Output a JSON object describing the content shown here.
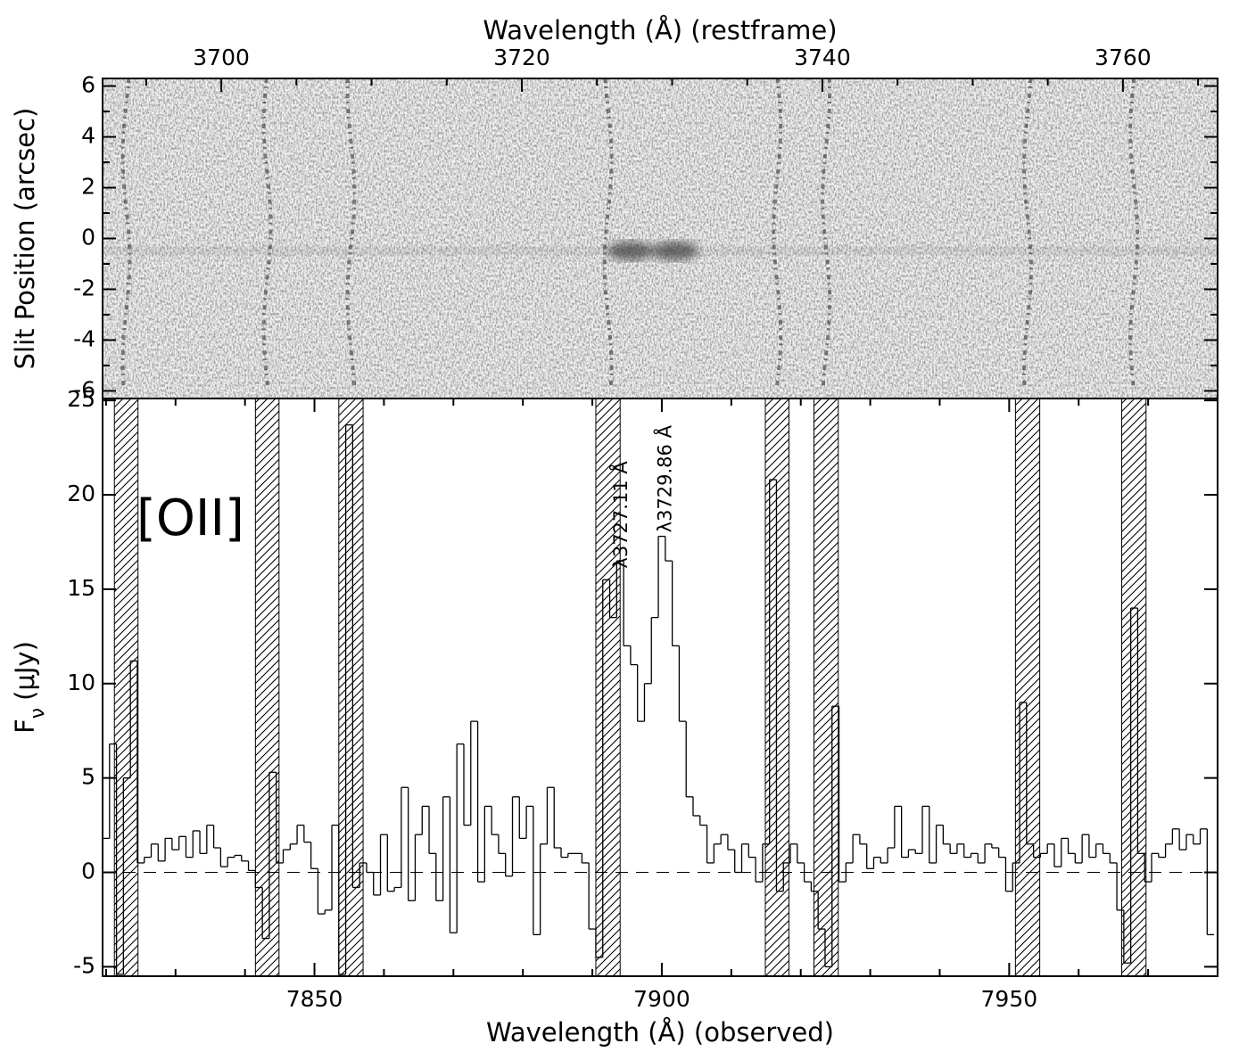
{
  "chart_data": [
    {
      "type": "image",
      "xlabel": "Wavelength (Å) (restframe)",
      "xlim": [
        3692.1,
        3766.3
      ],
      "xticks": [
        3700,
        3720,
        3740,
        3760
      ],
      "xminorticks": [
        3695,
        3705,
        3710,
        3715,
        3725,
        3730,
        3735,
        3745,
        3750,
        3755,
        3765
      ],
      "ylabel": "Slit Position (arcsec)",
      "ylim": [
        -6.3,
        6.3
      ],
      "yticks": [
        -6,
        -4,
        -2,
        0,
        2,
        4,
        6
      ],
      "yminorticks": [
        -5,
        -3,
        -1,
        1,
        3,
        5
      ]
    },
    {
      "type": "step",
      "xlabel": "Wavelength (Å) (observed)",
      "xlim": [
        7819.5,
        7980
      ],
      "xticks": [
        7850,
        7900,
        7950
      ],
      "xminorticks": [
        7820,
        7830,
        7840,
        7860,
        7870,
        7880,
        7890,
        7910,
        7920,
        7930,
        7940,
        7960,
        7970,
        7980
      ],
      "ylabel": [
        "F",
        "ν",
        "(μJy)"
      ],
      "ylim": [
        -5.5,
        25.1
      ],
      "yticks": [
        -5,
        0,
        5,
        10,
        15,
        20,
        25
      ],
      "color": "#000000",
      "x": [
        7820,
        7821,
        7822,
        7823,
        7824,
        7825,
        7826,
        7827,
        7828,
        7829,
        7830,
        7831,
        7832,
        7833,
        7834,
        7835,
        7836,
        7837,
        7838,
        7839,
        7840,
        7841,
        7842,
        7843,
        7844,
        7845,
        7846,
        7847,
        7848,
        7849,
        7850,
        7851,
        7852,
        7853,
        7854,
        7855,
        7856,
        7857,
        7858,
        7859,
        7860,
        7861,
        7862,
        7863,
        7864,
        7865,
        7866,
        7867,
        7868,
        7869,
        7870,
        7871,
        7872,
        7873,
        7874,
        7875,
        7876,
        7877,
        7878,
        7879,
        7880,
        7881,
        7882,
        7883,
        7884,
        7885,
        7886,
        7887,
        7888,
        7889,
        7890,
        7891,
        7892,
        7893,
        7894,
        7895,
        7896,
        7897,
        7898,
        7899,
        7900,
        7901,
        7902,
        7903,
        7904,
        7905,
        7906,
        7907,
        7908,
        7909,
        7910,
        7911,
        7912,
        7913,
        7914,
        7915,
        7916,
        7917,
        7918,
        7919,
        7920,
        7921,
        7922,
        7923,
        7924,
        7925,
        7926,
        7927,
        7928,
        7929,
        7930,
        7931,
        7932,
        7933,
        7934,
        7935,
        7936,
        7937,
        7938,
        7939,
        7940,
        7941,
        7942,
        7943,
        7944,
        7945,
        7946,
        7947,
        7948,
        7949,
        7950,
        7951,
        7952,
        7953,
        7954,
        7955,
        7956,
        7957,
        7958,
        7959,
        7960,
        7961,
        7962,
        7963,
        7964,
        7965,
        7966,
        7967,
        7968,
        7969,
        7970,
        7971,
        7972,
        7973,
        7974,
        7975,
        7976,
        7977,
        7978,
        7979
      ],
      "values": [
        1.8,
        6.8,
        -5.4,
        5,
        11.2,
        0.5,
        0.8,
        1.5,
        0.6,
        1.8,
        1.2,
        1.9,
        0.8,
        2.2,
        1.0,
        2.5,
        1.3,
        0.3,
        0.8,
        0.9,
        0.6,
        0.1,
        -0.8,
        -3.5,
        5.3,
        0.5,
        1.2,
        1.5,
        2.5,
        1.6,
        0.2,
        -2.2,
        -2.0,
        2.5,
        -5.4,
        23.7,
        -0.8,
        0.5,
        0.0,
        -1.2,
        2.0,
        -1.0,
        -0.8,
        4.5,
        -1.5,
        2.0,
        3.5,
        1.0,
        -1.5,
        4.0,
        -3.2,
        6.8,
        2.5,
        8.0,
        -0.5,
        3.5,
        2.0,
        1.0,
        -0.2,
        4.0,
        1.8,
        3.5,
        -3.3,
        1.5,
        4.5,
        1.3,
        0.8,
        1.0,
        1.0,
        0.5,
        -3.0,
        -4.5,
        15.5,
        13.5,
        16.5,
        12.0,
        11.0,
        8.0,
        10.0,
        13.5,
        17.8,
        16.5,
        12.0,
        8.0,
        4.0,
        3.0,
        2.5,
        0.5,
        1.5,
        2.0,
        1.2,
        0.0,
        1.5,
        0.8,
        -0.5,
        1.5,
        20.8,
        -1.0,
        0.5,
        1.5,
        0.5,
        -0.5,
        -1.0,
        -3.0,
        -5.0,
        8.8,
        -0.5,
        0.5,
        2.0,
        1.5,
        0.2,
        0.8,
        0.5,
        1.3,
        3.5,
        0.8,
        1.2,
        1.0,
        3.5,
        0.5,
        2.5,
        1.5,
        1.0,
        1.5,
        0.8,
        1.0,
        0.5,
        1.5,
        1.3,
        0.8,
        -1.0,
        0.5,
        9.0,
        1.5,
        0.8,
        1.0,
        1.5,
        0.3,
        1.8,
        1.0,
        0.5,
        2.0,
        0.8,
        1.5,
        1.0,
        0.5,
        -2.0,
        -4.8,
        14.0,
        1.0,
        -0.5,
        1.0,
        0.8,
        1.5,
        2.3,
        1.2,
        2.0,
        1.5,
        2.3,
        -3.3
      ],
      "masked_regions": [
        [
          7821.2,
          7824.6
        ],
        [
          7841.5,
          7844.9
        ],
        [
          7853.5,
          7857.0
        ],
        [
          7890.5,
          7894.0
        ],
        [
          7914.9,
          7918.3
        ],
        [
          7921.9,
          7925.4
        ],
        [
          7950.9,
          7954.4
        ],
        [
          7966.2,
          7969.7
        ]
      ],
      "annotation": "[OII]",
      "line_labels": [
        {
          "text": "λ3727.11 Å",
          "x": 7894.2,
          "y": 16.1
        },
        {
          "text": "λ3729.86 Å",
          "x": 7900.6,
          "y": 18.0
        }
      ]
    }
  ]
}
